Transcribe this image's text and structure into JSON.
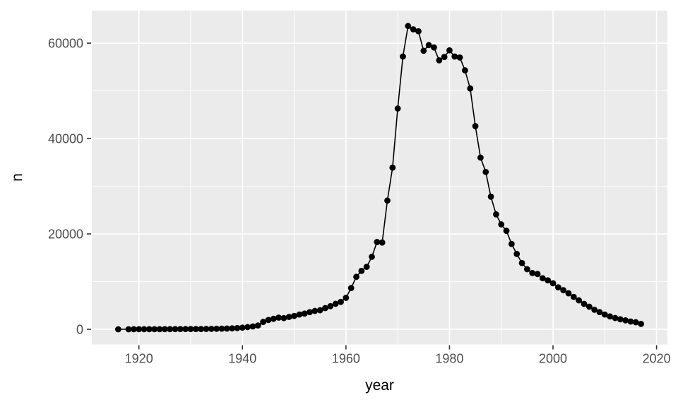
{
  "chart_data": {
    "type": "line",
    "subtype": "scatter-line",
    "title": "",
    "xlabel": "year",
    "ylabel": "n",
    "legend": "none",
    "grid": true,
    "panel_bg": "#EBEBEB",
    "grid_major_color": "#FFFFFF",
    "grid_minor_color": "#FFFFFF",
    "axis_text_color": "#4D4D4D",
    "tick_mark_color": "#333333",
    "point_color": "#000000",
    "line_color": "#000000",
    "xlim": [
      1910.9,
      2022.1
    ],
    "ylim": [
      -3180,
      66830
    ],
    "x_ticks": [
      1920,
      1940,
      1960,
      1980,
      2000,
      2020
    ],
    "x_tick_labels": [
      "1920",
      "1940",
      "1960",
      "1980",
      "2000",
      "2020"
    ],
    "x_minor_ticks": [
      1930,
      1950,
      1970,
      1990,
      2010
    ],
    "y_ticks": [
      0,
      20000,
      40000,
      60000
    ],
    "y_tick_labels": [
      "0",
      "20000",
      "40000",
      "60000"
    ],
    "y_minor_ticks": [
      10000,
      30000,
      50000
    ],
    "points": [
      [
        1916,
        5
      ],
      [
        1918,
        10
      ],
      [
        1919,
        15
      ],
      [
        1920,
        20
      ],
      [
        1921,
        20
      ],
      [
        1922,
        25
      ],
      [
        1923,
        25
      ],
      [
        1924,
        30
      ],
      [
        1925,
        35
      ],
      [
        1926,
        35
      ],
      [
        1927,
        40
      ],
      [
        1928,
        45
      ],
      [
        1929,
        50
      ],
      [
        1930,
        55
      ],
      [
        1931,
        60
      ],
      [
        1932,
        65
      ],
      [
        1933,
        75
      ],
      [
        1934,
        90
      ],
      [
        1935,
        110
      ],
      [
        1936,
        130
      ],
      [
        1937,
        160
      ],
      [
        1938,
        200
      ],
      [
        1939,
        260
      ],
      [
        1940,
        350
      ],
      [
        1941,
        460
      ],
      [
        1942,
        600
      ],
      [
        1943,
        800
      ],
      [
        1944,
        1550
      ],
      [
        1945,
        1950
      ],
      [
        1946,
        2200
      ],
      [
        1947,
        2450
      ],
      [
        1948,
        2350
      ],
      [
        1949,
        2600
      ],
      [
        1950,
        2800
      ],
      [
        1951,
        3100
      ],
      [
        1952,
        3300
      ],
      [
        1953,
        3600
      ],
      [
        1954,
        3850
      ],
      [
        1955,
        4000
      ],
      [
        1956,
        4450
      ],
      [
        1957,
        4850
      ],
      [
        1958,
        5350
      ],
      [
        1959,
        5750
      ],
      [
        1960,
        6600
      ],
      [
        1961,
        8650
      ],
      [
        1962,
        11000
      ],
      [
        1963,
        12250
      ],
      [
        1964,
        13100
      ],
      [
        1965,
        15200
      ],
      [
        1966,
        18300
      ],
      [
        1967,
        18200
      ],
      [
        1968,
        27000
      ],
      [
        1969,
        33900
      ],
      [
        1970,
        46300
      ],
      [
        1971,
        57200
      ],
      [
        1972,
        63600
      ],
      [
        1973,
        62900
      ],
      [
        1974,
        62500
      ],
      [
        1975,
        58400
      ],
      [
        1976,
        59600
      ],
      [
        1977,
        59100
      ],
      [
        1978,
        56400
      ],
      [
        1979,
        57100
      ],
      [
        1980,
        58500
      ],
      [
        1981,
        57200
      ],
      [
        1982,
        57000
      ],
      [
        1983,
        54300
      ],
      [
        1984,
        50500
      ],
      [
        1985,
        42600
      ],
      [
        1986,
        36000
      ],
      [
        1987,
        33000
      ],
      [
        1988,
        27800
      ],
      [
        1989,
        24100
      ],
      [
        1990,
        22000
      ],
      [
        1991,
        20650
      ],
      [
        1992,
        17900
      ],
      [
        1993,
        15800
      ],
      [
        1994,
        13900
      ],
      [
        1995,
        12600
      ],
      [
        1996,
        11800
      ],
      [
        1997,
        11600
      ],
      [
        1998,
        10700
      ],
      [
        1999,
        10270
      ],
      [
        2000,
        9650
      ],
      [
        2001,
        8800
      ],
      [
        2002,
        8200
      ],
      [
        2003,
        7550
      ],
      [
        2004,
        6800
      ],
      [
        2005,
        6070
      ],
      [
        2006,
        5330
      ],
      [
        2007,
        4740
      ],
      [
        2008,
        4100
      ],
      [
        2009,
        3600
      ],
      [
        2010,
        3100
      ],
      [
        2011,
        2700
      ],
      [
        2012,
        2370
      ],
      [
        2013,
        2100
      ],
      [
        2014,
        1880
      ],
      [
        2015,
        1630
      ],
      [
        2016,
        1480
      ],
      [
        2017,
        1140
      ]
    ]
  }
}
